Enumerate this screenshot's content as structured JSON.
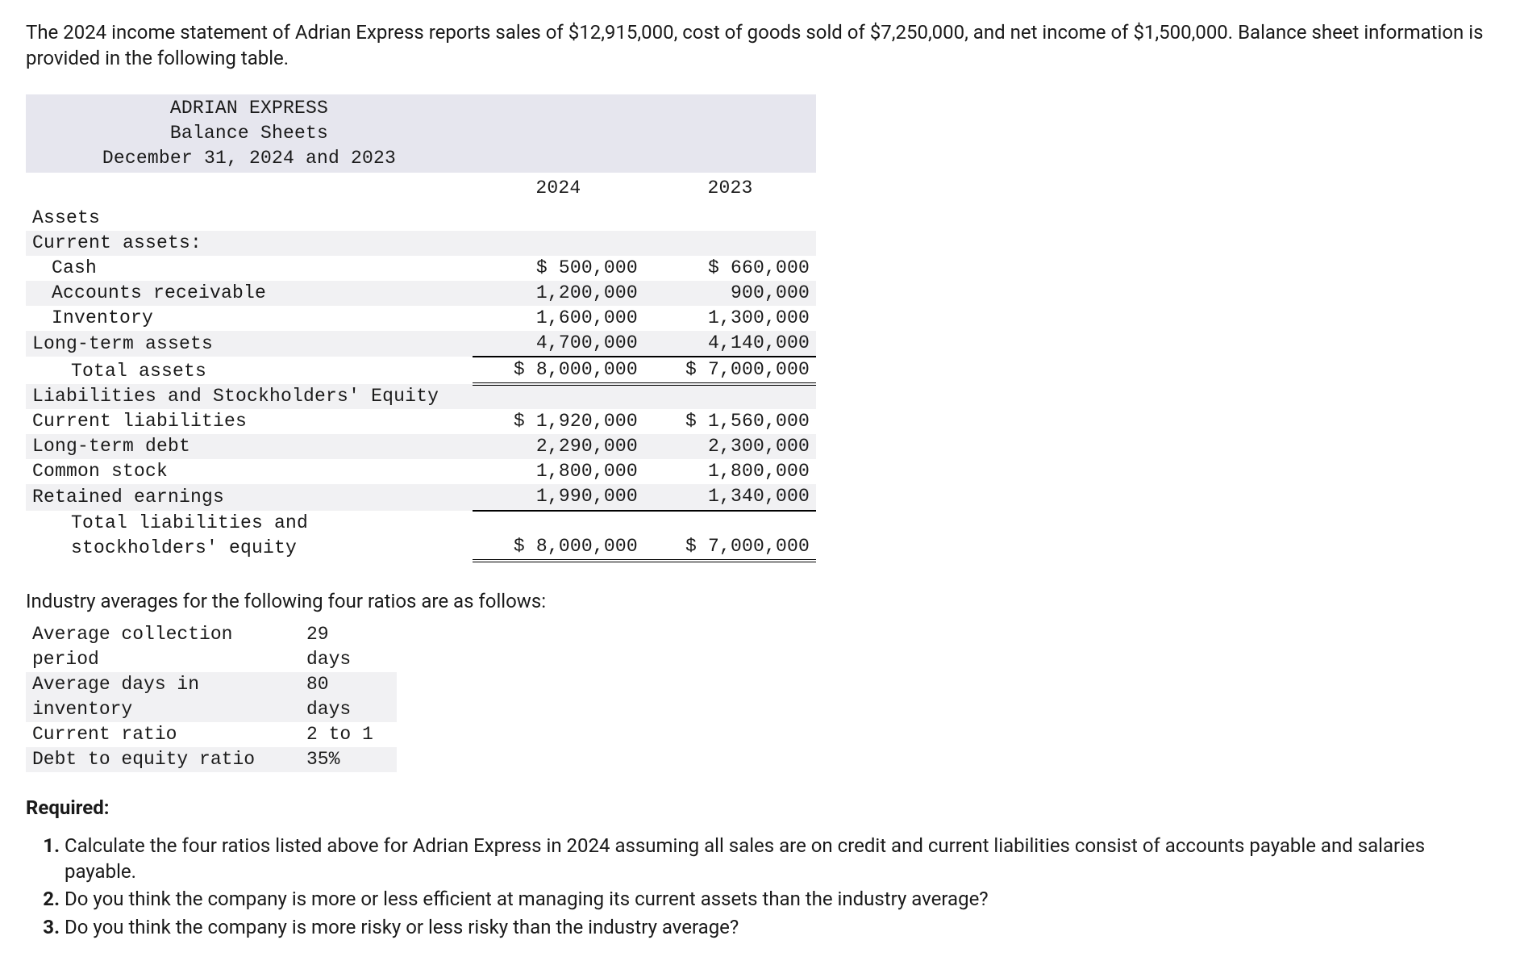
{
  "intro": "The 2024 income statement of Adrian Express reports sales of $12,915,000, cost of goods sold of $7,250,000, and net income of $1,500,000. Balance sheet information is provided in the following table.",
  "balance_sheet": {
    "title_lines": [
      "ADRIAN EXPRESS",
      "Balance Sheets",
      "December 31, 2024 and 2023"
    ],
    "col_headers": [
      "2024",
      "2023"
    ],
    "rows": [
      {
        "label": "Assets",
        "v1": "",
        "v2": "",
        "indent": 0,
        "alt": false
      },
      {
        "label": "Current assets:",
        "v1": "",
        "v2": "",
        "indent": 0,
        "alt": true
      },
      {
        "label": "Cash",
        "v1": "$ 500,000",
        "v2": "$ 660,000",
        "indent": 1,
        "alt": false
      },
      {
        "label": "Accounts receivable",
        "v1": "1,200,000",
        "v2": "900,000",
        "indent": 1,
        "alt": true
      },
      {
        "label": "Inventory",
        "v1": "1,600,000",
        "v2": "1,300,000",
        "indent": 1,
        "alt": false
      },
      {
        "label": "Long-term assets",
        "v1": "4,700,000",
        "v2": "4,140,000",
        "indent": 0,
        "alt": true
      },
      {
        "label": "Total assets",
        "v1": "$ 8,000,000",
        "v2": "$ 7,000,000",
        "indent": 2,
        "alt": false,
        "total": true
      },
      {
        "label": "Liabilities and Stockholders' Equity",
        "v1": "",
        "v2": "",
        "indent": 0,
        "alt": true
      },
      {
        "label": "Current liabilities",
        "v1": "$ 1,920,000",
        "v2": "$ 1,560,000",
        "indent": 0,
        "alt": false
      },
      {
        "label": "Long-term debt",
        "v1": "2,290,000",
        "v2": "2,300,000",
        "indent": 0,
        "alt": true
      },
      {
        "label": "Common stock",
        "v1": "1,800,000",
        "v2": "1,800,000",
        "indent": 0,
        "alt": false
      },
      {
        "label": "Retained earnings",
        "v1": "1,990,000",
        "v2": "1,340,000",
        "indent": 0,
        "alt": true
      },
      {
        "label": "Total liabilities and stockholders' equity",
        "v1": "$ 8,000,000",
        "v2": "$ 7,000,000",
        "indent": 2,
        "alt": false,
        "total": true
      }
    ],
    "header_bg": "#e6e6ee",
    "alt_bg": "#f1f1f3"
  },
  "industry_intro": "Industry averages for the following four ratios are as follows:",
  "industry": {
    "rows": [
      {
        "label": "Average collection period",
        "value": "29 days",
        "alt": false
      },
      {
        "label": "Average days in inventory",
        "value": "80 days",
        "alt": true
      },
      {
        "label": "Current ratio",
        "value": "2 to 1",
        "alt": false
      },
      {
        "label": "Debt to equity ratio",
        "value": "35%",
        "alt": true
      }
    ]
  },
  "required_heading": "Required:",
  "required_items": [
    "Calculate the four ratios listed above for Adrian Express in 2024 assuming all sales are on credit and current liabilities consist of accounts payable and salaries payable.",
    "Do you think the company is more or less efficient at managing its current assets than the industry average?",
    "Do you think the company is more risky or less risky than the industry average?"
  ]
}
